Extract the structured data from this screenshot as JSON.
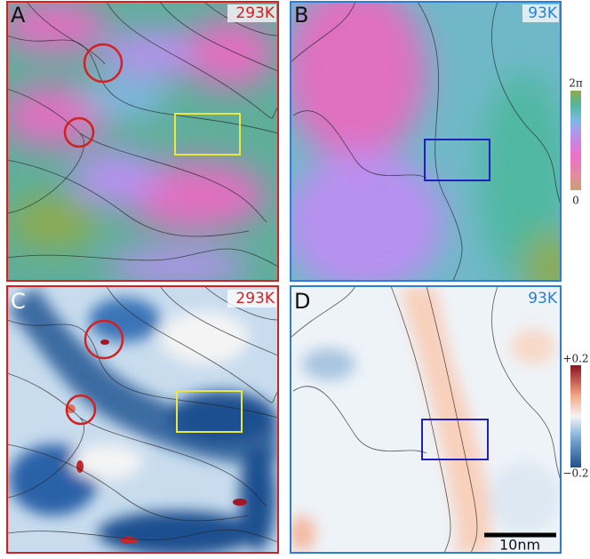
{
  "panels": [
    {
      "label": "A",
      "temperature": "293K"
    },
    {
      "label": "B",
      "temperature": "93K"
    },
    {
      "label": "C",
      "temperature": "293K"
    },
    {
      "label": "D",
      "temperature": "93K"
    }
  ],
  "colorbars": [
    {
      "max_label": "2π",
      "min_label": "0"
    },
    {
      "max_label": "+0.2",
      "min_label": "−0.2"
    }
  ],
  "scale_bar": "10nm"
}
